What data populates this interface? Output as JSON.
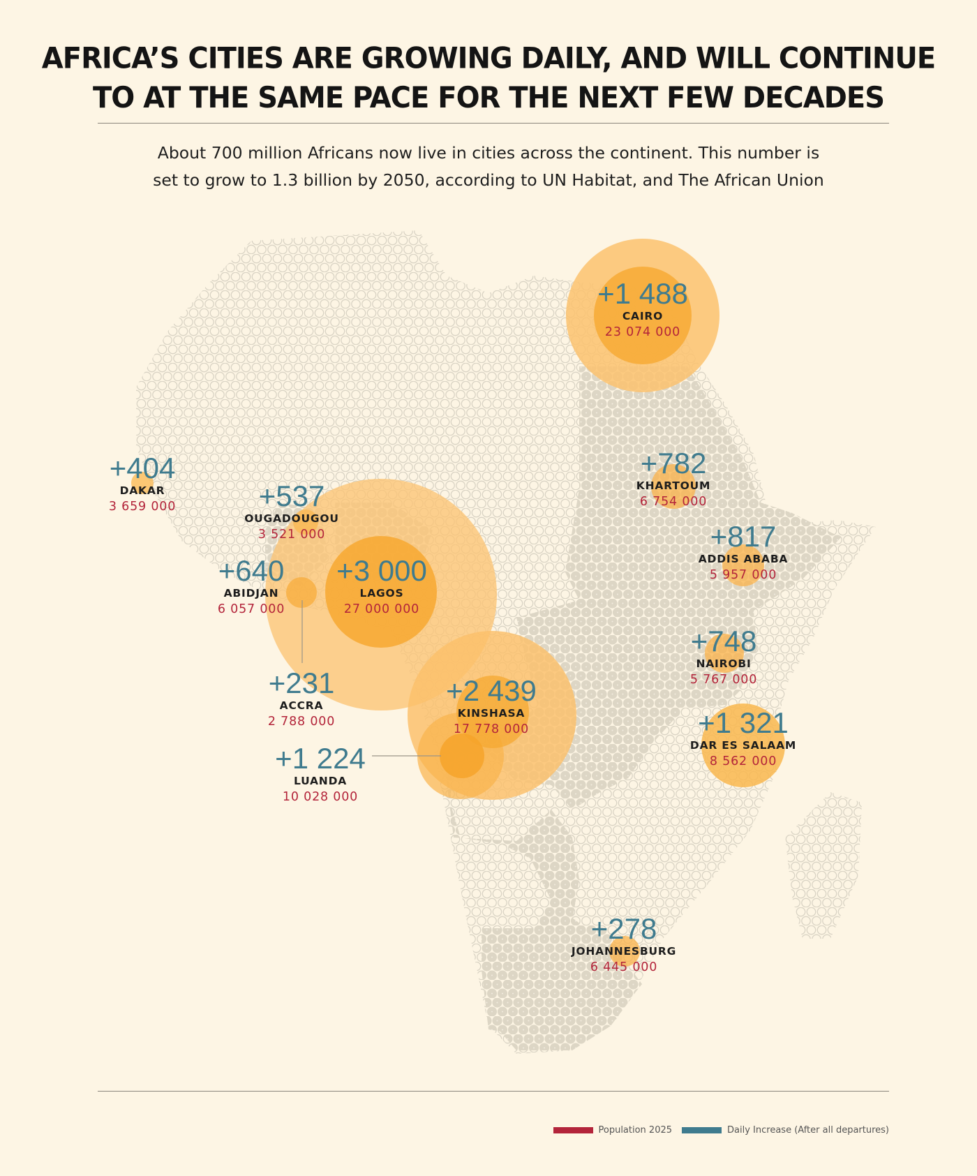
{
  "title": {
    "line1": "AFRICA’S CITIES ARE GROWING DAILY, AND WILL CONTINUE",
    "line2": "TO AT THE SAME PACE FOR THE NEXT FEW DECADES"
  },
  "subtitle": {
    "line1": "About 700 million Africans now live in cities across the continent. This number is",
    "line2": "set to grow to 1.3 billion by 2050, according to UN Habitat, and The African Union"
  },
  "colors": {
    "population": "#b3243a",
    "increase": "#3f7b8e",
    "bubble": "#f7b347",
    "dots": "#e7e2d5",
    "region": "#dcd5c4"
  },
  "cities": [
    {
      "id": "cairo",
      "name": "CAIRO",
      "increase": "+1 488",
      "population": "23 074 000"
    },
    {
      "id": "khartoum",
      "name": "KHARTOUM",
      "increase": "+782",
      "population": "6 754 000"
    },
    {
      "id": "addis-ababa",
      "name": "ADDIS ABABA",
      "increase": "+817",
      "population": "5 957 000"
    },
    {
      "id": "nairobi",
      "name": "NAIROBI",
      "increase": "+748",
      "population": "5 767 000"
    },
    {
      "id": "dar-es-salaam",
      "name": "DAR ES SALAAM",
      "increase": "+1 321",
      "population": "8 562 000"
    },
    {
      "id": "dakar",
      "name": "DAKAR",
      "increase": "+404",
      "population": "3 659 000"
    },
    {
      "id": "ouagadougou",
      "name": "OUGADOUGOU",
      "increase": "+537",
      "population": "3 521 000"
    },
    {
      "id": "abidjan",
      "name": "ABIDJAN",
      "increase": "+640",
      "population": "6 057 000"
    },
    {
      "id": "lagos",
      "name": "LAGOS",
      "increase": "+3 000",
      "population": "27 000 000"
    },
    {
      "id": "accra",
      "name": "ACCRA",
      "increase": "+231",
      "population": "2 788 000"
    },
    {
      "id": "kinshasa",
      "name": "KINSHASA",
      "increase": "+2 439",
      "population": "17 778 000"
    },
    {
      "id": "luanda",
      "name": "LUANDA",
      "increase": "+1 224",
      "population": "10 028 000"
    },
    {
      "id": "johannesburg",
      "name": "JOHANNESBURG",
      "increase": "+278",
      "population": "6 445 000"
    }
  ],
  "legend": {
    "population_label": "Population 2025",
    "increase_label": "Daily Increase (After all departures)"
  }
}
